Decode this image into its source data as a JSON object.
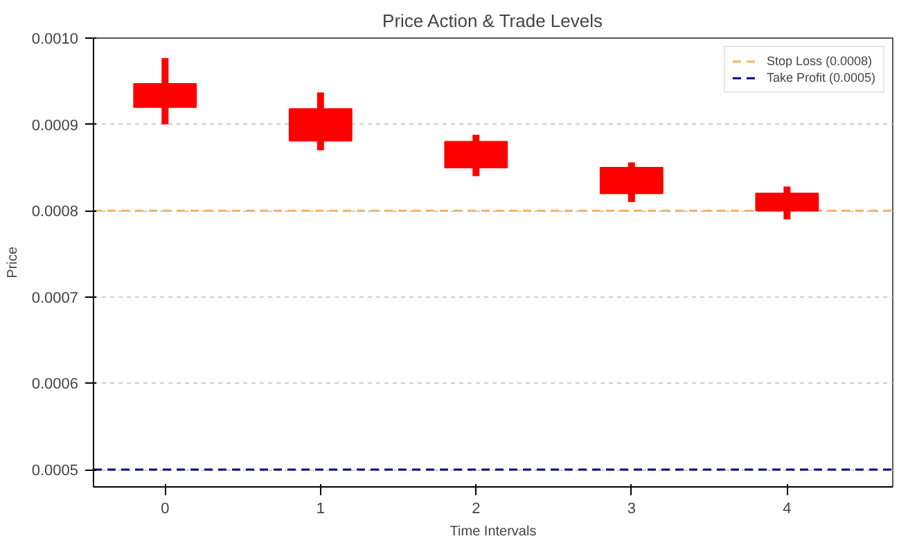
{
  "chart_data": {
    "type": "candlestick",
    "title": "Price Action & Trade Levels",
    "xlabel": "Time Intervals",
    "ylabel": "Price",
    "x": [
      0,
      1,
      2,
      3,
      4
    ],
    "ohlc": [
      [
        0.000947,
        0.000977,
        0.0009,
        0.00092
      ],
      [
        0.000918,
        0.000937,
        0.00087,
        0.000881
      ],
      [
        0.00088,
        0.000888,
        0.00084,
        0.00085
      ],
      [
        0.00085,
        0.000856,
        0.00081,
        0.00082
      ],
      [
        0.00082,
        0.000828,
        0.00079,
        0.0008
      ]
    ],
    "color": "#ff0000",
    "xlim": [
      -0.46,
      4.68
    ],
    "xticks": [
      0,
      1,
      2,
      3,
      4
    ],
    "ylim": [
      0.00048,
      0.001
    ],
    "yticks": [
      {
        "value": 0.0005,
        "label": "0.0005"
      },
      {
        "value": 0.0006,
        "label": "0.0006"
      },
      {
        "value": 0.0007,
        "label": "0.0007"
      },
      {
        "value": 0.0008,
        "label": "0.0008"
      },
      {
        "value": 0.0009,
        "label": "0.0009"
      },
      {
        "value": 0.001,
        "label": "0.0010"
      }
    ],
    "grid": "y",
    "legend": "top right",
    "ref_lines": [
      {
        "axis": "y",
        "value": 0.0008,
        "label": "Stop Loss (0.0008)",
        "color": "#f4b266",
        "line_style": "dashed"
      },
      {
        "axis": "y",
        "value": 0.0005,
        "label": "Take Profit (0.0005)",
        "color": "#00008b",
        "line_style": "dashed"
      }
    ]
  }
}
